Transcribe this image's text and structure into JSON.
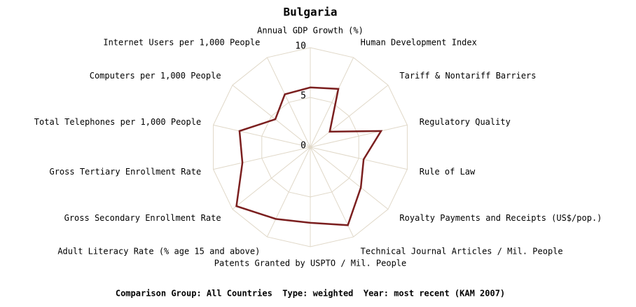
{
  "chart_data": {
    "type": "radar",
    "title": "Bulgaria",
    "categories": [
      "Annual GDP Growth (%)",
      "Human Development Index",
      "Tariff & Nontariff Barriers",
      "Regulatory Quality",
      "Rule of Law",
      "Royalty Payments and Receipts (US$/pop.)",
      "Technical Journal Articles / Mil. People",
      "Patents Granted by USPTO / Mil. People",
      "Adult Literacy Rate (% age 15 and above)",
      "Gross Secondary Enrollment Rate",
      "Gross Tertiary Enrollment Rate",
      "Total Telephones per 1,000 People",
      "Computers per 1,000 People",
      "Internet Users per 1,000 People"
    ],
    "values": [
      6.0,
      6.5,
      2.5,
      7.3,
      5.5,
      6.5,
      8.7,
      7.6,
      8.0,
      9.5,
      7.0,
      7.3,
      4.5,
      5.9
    ],
    "color": "#7b1f1f",
    "ylim": [
      0,
      10
    ],
    "yticks": [
      0,
      5,
      10
    ],
    "footer": "Comparison Group: All Countries  Type: weighted  Year: most recent (KAM 2007)"
  }
}
